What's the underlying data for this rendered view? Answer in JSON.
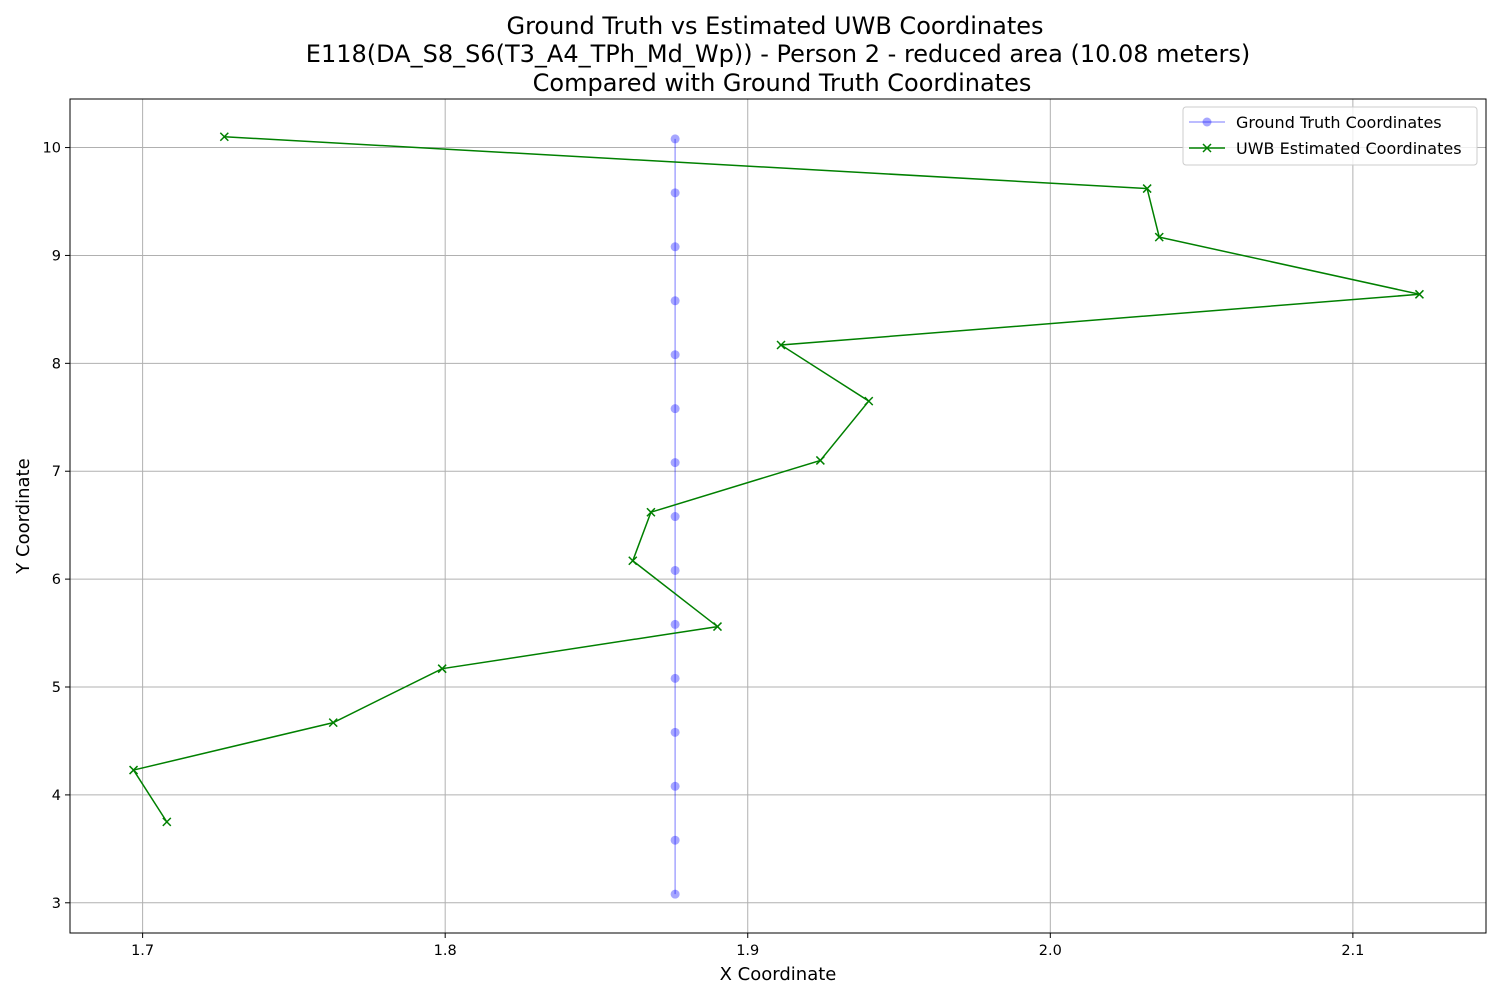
{
  "chart_data": {
    "type": "line",
    "title_lines": [
      "Ground Truth vs Estimated UWB Coordinates",
      "E118(DA_S8_S6(T3_A4_TPh_Md_Wp)) - Person 2 - reduced area (10.08 meters)",
      "Compared with Ground Truth Coordinates"
    ],
    "xlabel": "X Coordinate",
    "ylabel": "Y Coordinate",
    "xlim": [
      1.676,
      2.144
    ],
    "ylim": [
      2.72,
      10.45
    ],
    "xticks": [
      1.7,
      1.8,
      1.9,
      2.0,
      2.1
    ],
    "xtick_labels": [
      "1.7",
      "1.8",
      "1.9",
      "2.0",
      "2.1"
    ],
    "yticks": [
      3,
      4,
      5,
      6,
      7,
      8,
      9,
      10
    ],
    "ytick_labels": [
      "3",
      "4",
      "5",
      "6",
      "7",
      "8",
      "9",
      "10"
    ],
    "grid": true,
    "legend_position": "top-right",
    "series": [
      {
        "name": "Ground Truth Coordinates",
        "color": "#0000ff",
        "alpha": 0.35,
        "marker": "circle",
        "x": [
          1.876,
          1.876,
          1.876,
          1.876,
          1.876,
          1.876,
          1.876,
          1.876,
          1.876,
          1.876,
          1.876,
          1.876,
          1.876,
          1.876,
          1.876
        ],
        "y": [
          10.08,
          9.58,
          9.08,
          8.58,
          8.08,
          7.58,
          7.08,
          6.58,
          6.08,
          5.58,
          5.08,
          4.58,
          4.08,
          3.58,
          3.08
        ]
      },
      {
        "name": "UWB Estimated Coordinates",
        "color": "#008000",
        "alpha": 1.0,
        "marker": "x",
        "x": [
          1.727,
          2.032,
          2.036,
          2.122,
          1.911,
          1.94,
          1.924,
          1.868,
          1.862,
          1.89,
          1.799,
          1.763,
          1.697,
          1.708
        ],
        "y": [
          10.1,
          9.62,
          9.17,
          8.64,
          8.17,
          7.65,
          7.1,
          6.62,
          6.17,
          5.56,
          5.17,
          4.67,
          4.23,
          3.75
        ]
      }
    ]
  }
}
